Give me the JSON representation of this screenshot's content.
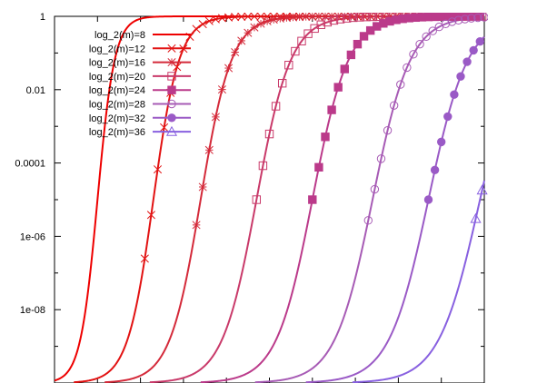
{
  "chart_data": {
    "type": "line",
    "title": "",
    "xlabel": "",
    "ylabel": "",
    "yscale": "log",
    "ylim": [
      1e-10,
      1
    ],
    "xlim": [
      0,
      1
    ],
    "y_ticks": [
      {
        "value": 1,
        "label": "1"
      },
      {
        "value": 0.01,
        "label": "0.01"
      },
      {
        "value": 0.0001,
        "label": "0.0001"
      },
      {
        "value": 1e-06,
        "label": "1e-06"
      },
      {
        "value": 1e-08,
        "label": "1e-08"
      }
    ],
    "y_minor_ticks": [
      0.1,
      0.001,
      1e-05,
      1e-07,
      1e-09
    ],
    "x_ticks": [
      0.1,
      0.2,
      0.3,
      0.4,
      0.5,
      0.6,
      0.7,
      0.8,
      0.9
    ],
    "grid": false,
    "legend_position": "top-left",
    "series": [
      {
        "name": "log_2(m)=8",
        "color": "#ee0000",
        "marker": "none",
        "x_mid": 0.1,
        "k": 0.02,
        "x_markers": []
      },
      {
        "name": "log_2(m)=12",
        "color": "#e21212",
        "marker": "cross",
        "x_mid": 0.23,
        "k": 0.03,
        "x_markers": [
          0.21,
          0.225,
          0.24,
          0.255,
          0.27,
          0.285,
          0.3,
          0.315,
          0.33,
          0.345,
          0.36,
          0.375,
          0.39,
          0.405,
          0.42,
          0.435,
          0.45,
          0.465,
          0.48,
          0.495,
          0.51,
          0.525,
          0.54,
          0.555,
          0.57,
          0.585,
          0.6,
          0.615,
          0.63,
          0.645,
          0.66,
          0.675,
          0.69,
          0.705,
          0.72,
          0.735,
          0.75,
          0.765,
          0.78,
          0.795,
          0.81,
          0.825,
          0.84,
          0.855,
          0.87,
          0.885,
          0.9,
          0.915,
          0.93,
          0.945,
          0.96,
          0.975,
          0.99
        ]
      },
      {
        "name": "log_2(m)=16",
        "color": "#d42a3a",
        "marker": "star",
        "x_mid": 0.34,
        "k": 0.036,
        "x_markers": [
          0.33,
          0.345,
          0.36,
          0.375,
          0.39,
          0.405,
          0.42,
          0.435,
          0.45,
          0.465,
          0.48,
          0.495,
          0.51,
          0.525,
          0.54,
          0.555,
          0.57,
          0.585,
          0.6,
          0.615,
          0.63,
          0.645,
          0.66,
          0.675,
          0.69,
          0.705,
          0.72,
          0.735,
          0.75,
          0.765,
          0.78,
          0.795,
          0.81,
          0.825,
          0.84,
          0.855,
          0.87,
          0.885,
          0.9,
          0.915,
          0.93,
          0.945,
          0.96,
          0.975,
          0.99
        ]
      },
      {
        "name": "log_2(m)=20",
        "color": "#c93a6a",
        "marker": "square-open",
        "x_mid": 0.47,
        "k": 0.04,
        "x_markers": [
          0.47,
          0.485,
          0.5,
          0.515,
          0.53,
          0.545,
          0.56,
          0.575,
          0.59,
          0.605,
          0.62,
          0.635,
          0.65,
          0.665,
          0.68,
          0.695,
          0.71,
          0.725,
          0.74,
          0.755,
          0.77,
          0.785,
          0.8,
          0.815,
          0.83,
          0.845,
          0.86,
          0.875,
          0.89,
          0.905,
          0.92,
          0.935,
          0.95,
          0.965,
          0.98,
          0.995
        ]
      },
      {
        "name": "log_2(m)=24",
        "color": "#bb3a8a",
        "marker": "square-filled",
        "x_mid": 0.6,
        "k": 0.042,
        "x_markers": [
          0.6,
          0.615,
          0.63,
          0.645,
          0.66,
          0.675,
          0.69,
          0.705,
          0.72,
          0.735,
          0.75,
          0.765,
          0.78,
          0.795,
          0.81,
          0.825,
          0.84,
          0.855,
          0.87,
          0.885,
          0.9,
          0.915,
          0.93,
          0.945,
          0.96,
          0.975,
          0.99
        ]
      },
      {
        "name": "log_2(m)=28",
        "color": "#a75bb5",
        "marker": "circle-open",
        "x_mid": 0.74,
        "k": 0.044,
        "x_markers": [
          0.73,
          0.745,
          0.76,
          0.775,
          0.79,
          0.805,
          0.82,
          0.835,
          0.85,
          0.865,
          0.88,
          0.895,
          0.91,
          0.925,
          0.94,
          0.955,
          0.97,
          0.985,
          1.0
        ]
      },
      {
        "name": "log_2(m)=32",
        "color": "#9a5ac6",
        "marker": "circle-filled",
        "x_mid": 0.87,
        "k": 0.046,
        "x_markers": [
          0.87,
          0.885,
          0.9,
          0.915,
          0.93,
          0.945,
          0.96,
          0.975,
          0.99
        ]
      },
      {
        "name": "log_2(m)=36",
        "color": "#8860e0",
        "marker": "triangle-open",
        "x_mid": 0.99,
        "k": 0.048,
        "x_markers": [
          0.98,
          0.995
        ]
      }
    ]
  }
}
